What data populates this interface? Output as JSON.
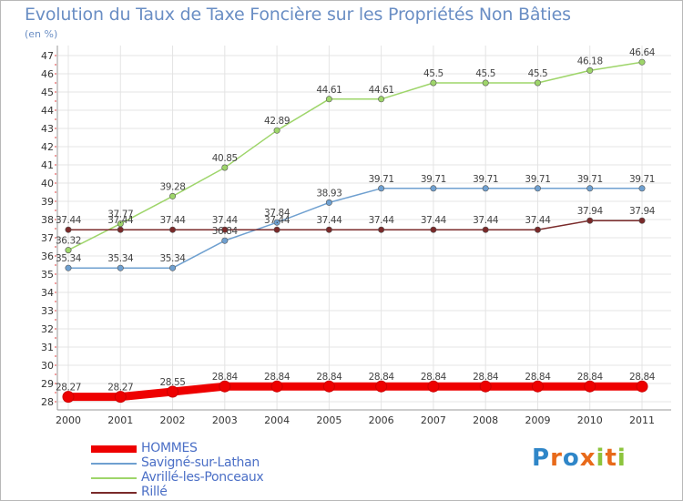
{
  "title": "Evolution du Taux de Taxe Foncière sur les Propriétés Non Bâties",
  "unit_label": "(en %)",
  "logo": {
    "letters": [
      {
        "ch": "P",
        "color": "#2f86c8"
      },
      {
        "ch": "r",
        "color": "#e86a1a"
      },
      {
        "ch": "o",
        "color": "#2f86c8"
      },
      {
        "ch": "x",
        "color": "#e86a1a"
      },
      {
        "ch": "i",
        "color": "#8cc43c"
      },
      {
        "ch": "t",
        "color": "#e86a1a"
      },
      {
        "ch": "i",
        "color": "#8cc43c"
      }
    ]
  },
  "chart_data": {
    "type": "line",
    "title": "Evolution du Taux de Taxe Foncière sur les Propriétés Non Bâties",
    "ylabel": "(en %)",
    "xlabel": "",
    "x": [
      "2000",
      "2001",
      "2002",
      "2003",
      "2004",
      "2005",
      "2006",
      "2007",
      "2008",
      "2009",
      "2010",
      "2011"
    ],
    "ylim": [
      28,
      47
    ],
    "yticks": [
      28,
      29,
      30,
      31,
      32,
      33,
      34,
      35,
      36,
      37,
      38,
      39,
      40,
      41,
      42,
      43,
      44,
      45,
      46,
      47
    ],
    "grid": true,
    "legend_position": "bottom-left",
    "series": [
      {
        "name": "HOMMES",
        "color": "#ee0000",
        "values": [
          28.27,
          28.27,
          28.55,
          28.84,
          28.84,
          28.84,
          28.84,
          28.84,
          28.84,
          28.84,
          28.84,
          28.84
        ],
        "labels": [
          "28.27",
          "28.27",
          "28.55",
          "28.84",
          "28.84",
          "28.84",
          "28.84",
          "28.84",
          "28.84",
          "28.84",
          "28.84",
          "28.84"
        ]
      },
      {
        "name": "Savigné-sur-Lathan",
        "color": "#6fa0d0",
        "values": [
          35.34,
          35.34,
          35.34,
          36.84,
          37.84,
          38.93,
          39.71,
          39.71,
          39.71,
          39.71,
          39.71,
          39.71
        ],
        "labels": [
          "35.34",
          "35.34",
          "35.34",
          "36.84",
          "37.84",
          "38.93",
          "39.71",
          "39.71",
          "39.71",
          "39.71",
          "39.71",
          "39.71"
        ]
      },
      {
        "name": "Avrillé-les-Ponceaux",
        "color": "#9ed56a",
        "values": [
          36.32,
          37.77,
          39.28,
          40.85,
          42.89,
          44.61,
          44.61,
          45.5,
          45.5,
          45.5,
          46.18,
          46.64
        ],
        "labels": [
          "36.32",
          "37.77",
          "39.28",
          "40.85",
          "42.89",
          "44.61",
          "44.61",
          "45.5",
          "45.5",
          "45.5",
          "46.18",
          "46.64"
        ]
      },
      {
        "name": "Rillé",
        "color": "#7a2a2a",
        "values": [
          37.44,
          37.44,
          37.44,
          37.44,
          37.44,
          37.44,
          37.44,
          37.44,
          37.44,
          37.44,
          37.94,
          37.94
        ],
        "labels": [
          "37.44",
          "37.44",
          "37.44",
          "37.44",
          "37.44",
          "37.44",
          "37.44",
          "37.44",
          "37.44",
          "37.44",
          "37.94",
          "37.94"
        ]
      }
    ]
  }
}
